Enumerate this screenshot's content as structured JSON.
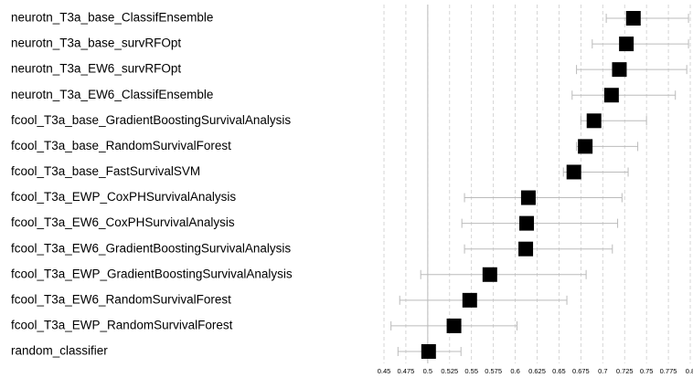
{
  "chart_data": {
    "type": "forest",
    "categories": [
      "neurotn_T3a_base_ClassifEnsemble",
      "neurotn_T3a_base_survRFOpt",
      "neurotn_T3a_EW6_survRFOpt",
      "neurotn_T3a_EW6_ClassifEnsemble",
      "fcool_T3a_base_GradientBoostingSurvivalAnalysis",
      "fcool_T3a_base_RandomSurvivalForest",
      "fcool_T3a_base_FastSurvivalSVM",
      "fcool_T3a_EWP_CoxPHSurvivalAnalysis",
      "fcool_T3a_EW6_CoxPHSurvivalAnalysis",
      "fcool_T3a_EW6_GradientBoostingSurvivalAnalysis",
      "fcool_T3a_EWP_GradientBoostingSurvivalAnalysis",
      "fcool_T3a_EW6_RandomSurvivalForest",
      "fcool_T3a_EWP_RandomSurvivalForest",
      "random_classifier"
    ],
    "values": [
      0.735,
      0.727,
      0.719,
      0.71,
      0.69,
      0.68,
      0.667,
      0.615,
      0.613,
      0.612,
      0.571,
      0.548,
      0.53,
      0.501
    ],
    "lower": [
      0.704,
      0.688,
      0.67,
      0.665,
      0.675,
      0.67,
      0.655,
      0.542,
      0.539,
      0.542,
      0.492,
      0.468,
      0.458,
      0.466
    ],
    "upper": [
      0.798,
      0.798,
      0.796,
      0.783,
      0.75,
      0.74,
      0.729,
      0.722,
      0.717,
      0.711,
      0.681,
      0.659,
      0.602,
      0.538
    ],
    "reference": 0.5,
    "color": "#000000",
    "xlim": [
      0.45,
      0.8
    ],
    "xticks": [
      0.45,
      0.475,
      0.5,
      0.525,
      0.55,
      0.575,
      0.6,
      0.625,
      0.65,
      0.675,
      0.7,
      0.725,
      0.75,
      0.775,
      0.8
    ],
    "grid": true
  }
}
